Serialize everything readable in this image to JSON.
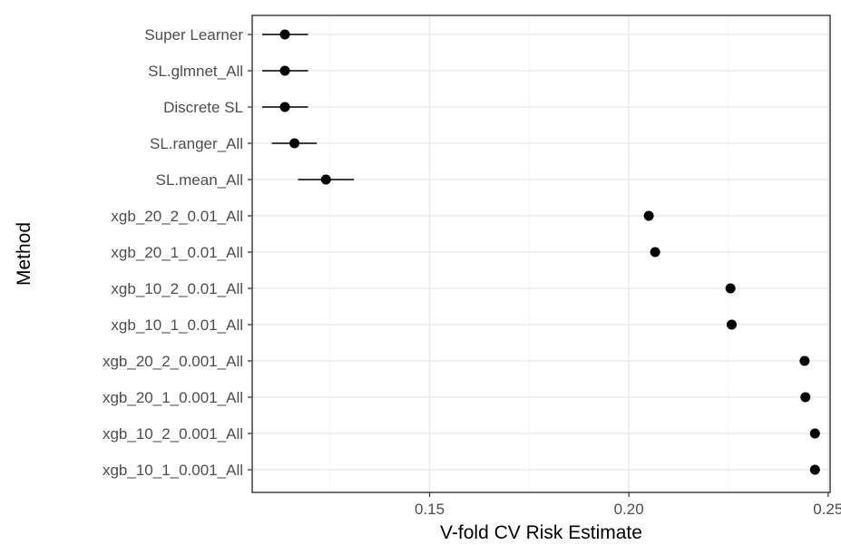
{
  "chart_data": {
    "type": "scatter",
    "subtype": "point-range (dot plot with error bars)",
    "title": "",
    "xlabel": "V-fold CV Risk Estimate",
    "ylabel": "Method",
    "xlim": [
      0.1055,
      0.2505
    ],
    "x_ticks": [
      0.15,
      0.2,
      0.25
    ],
    "x_tick_labels": [
      "0.15",
      "0.20",
      "0.25"
    ],
    "grid": true,
    "legend": "none",
    "theme": "bw",
    "categories": [
      "Super Learner",
      "SL.glmnet_All",
      "Discrete SL",
      "SL.ranger_All",
      "SL.mean_All",
      "xgb_20_2_0.01_All",
      "xgb_20_1_0.01_All",
      "xgb_10_2_0.01_All",
      "xgb_10_1_0.01_All",
      "xgb_20_2_0.001_All",
      "xgb_20_1_0.001_All",
      "xgb_10_2_0.001_All",
      "xgb_10_1_0.001_All"
    ],
    "series": [
      {
        "values": [
          0.1137,
          0.1137,
          0.1137,
          0.1161,
          0.124,
          0.205,
          0.2066,
          0.2255,
          0.2258,
          0.2441,
          0.2443,
          0.2467,
          0.2467
        ],
        "lower": [
          0.108,
          0.108,
          0.108,
          0.1104,
          0.117,
          0.2048,
          0.2064,
          0.2253,
          0.2256,
          0.2439,
          0.2441,
          0.2465,
          0.2465
        ],
        "upper": [
          0.1195,
          0.1195,
          0.1195,
          0.1217,
          0.131,
          0.2052,
          0.2068,
          0.2257,
          0.226,
          0.2443,
          0.2445,
          0.2469,
          0.2469
        ]
      }
    ]
  },
  "style": {
    "point_color": "#000000",
    "line_color": "#000000",
    "grid_major_color": "#ebebeb",
    "grid_minor_color": "#f4f4f4",
    "panel_border_color": "#333333",
    "tick_label_color": "#4d4d4d",
    "axis_title_color": "#000000",
    "background": "#ffffff"
  }
}
